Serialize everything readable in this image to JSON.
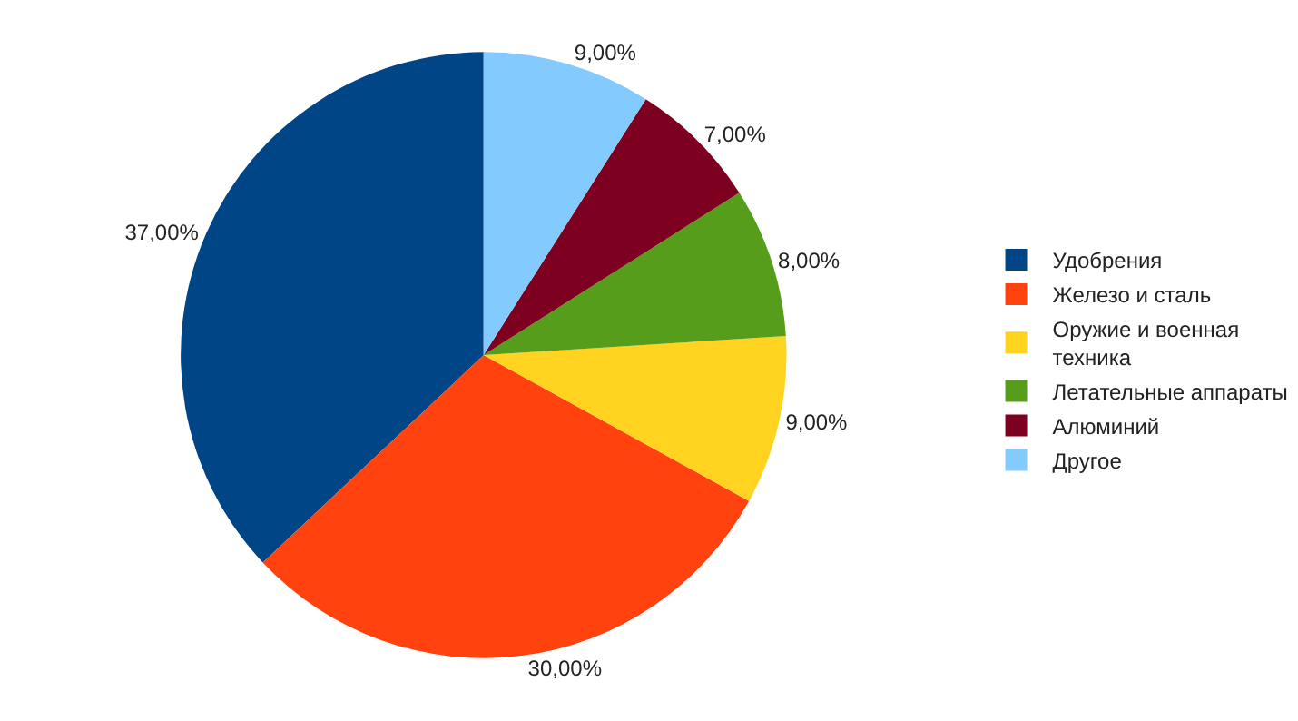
{
  "chart_data": {
    "type": "pie",
    "categories": [
      "Удобрения",
      "Железо и сталь",
      "Оружие и военная техника",
      "Летательные аппараты",
      "Алюминий",
      "Другое"
    ],
    "values": [
      37,
      30,
      9,
      8,
      7,
      9
    ],
    "colors": [
      "#004586",
      "#ff420e",
      "#ffd320",
      "#579d1c",
      "#7e0021",
      "#83caff"
    ],
    "value_labels": [
      "37,00%",
      "30,00%",
      "9,00%",
      "8,00%",
      "7,00%",
      "9,00%"
    ],
    "legend": "right"
  }
}
